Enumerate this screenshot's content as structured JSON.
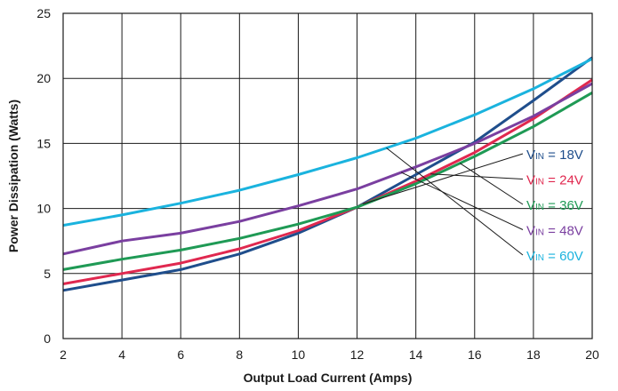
{
  "chart_data": {
    "type": "line",
    "title": "",
    "xlabel": "Output Load Current (Amps)",
    "ylabel": "Power Dissipation (Watts)",
    "xlim": [
      2,
      20
    ],
    "ylim": [
      0,
      25
    ],
    "xticks": [
      "2",
      "4",
      "6",
      "8",
      "10",
      "12",
      "14",
      "16",
      "18",
      "20"
    ],
    "yticks": [
      "0",
      "5",
      "10",
      "15",
      "20",
      "25"
    ],
    "grid": true,
    "legend_position": "right, with leader lines",
    "x": [
      2,
      4,
      6,
      8,
      10,
      12,
      14,
      16,
      18,
      20
    ],
    "series": [
      {
        "name": "V_IN = 18V",
        "label_main": "V",
        "label_sub": "IN",
        "label_rest": " = 18V",
        "color": "#1f4e8c",
        "values": [
          3.7,
          4.5,
          5.3,
          6.5,
          8.1,
          10.1,
          12.6,
          15.1,
          18.3,
          21.6
        ],
        "label_point_x": 12.2
      },
      {
        "name": "V_IN = 24V",
        "label_main": "V",
        "label_sub": "IN",
        "label_rest": " = 24V",
        "color": "#e0284f",
        "values": [
          4.2,
          5.0,
          5.8,
          6.9,
          8.3,
          10.1,
          12.1,
          14.3,
          16.9,
          19.9
        ],
        "label_point_x": 14.5
      },
      {
        "name": "V_IN = 36V",
        "label_main": "V",
        "label_sub": "IN",
        "label_rest": " = 36V",
        "color": "#1f9a55",
        "values": [
          5.3,
          6.1,
          6.8,
          7.7,
          8.8,
          10.1,
          11.9,
          14.0,
          16.3,
          18.9
        ],
        "label_point_x": 15.5
      },
      {
        "name": "V_IN = 48V",
        "label_main": "V",
        "label_sub": "IN",
        "label_rest": " = 48V",
        "color": "#7a3fa0",
        "values": [
          6.5,
          7.5,
          8.1,
          9.0,
          10.2,
          11.5,
          13.2,
          15.0,
          17.1,
          19.6
        ],
        "label_point_x": 13.5
      },
      {
        "name": "V_IN = 60V",
        "label_main": "V",
        "label_sub": "IN",
        "label_rest": " = 60V",
        "color": "#1ab3de",
        "values": [
          8.7,
          9.5,
          10.4,
          11.4,
          12.6,
          13.9,
          15.4,
          17.2,
          19.2,
          21.5
        ],
        "label_point_x": 13.0
      }
    ]
  }
}
